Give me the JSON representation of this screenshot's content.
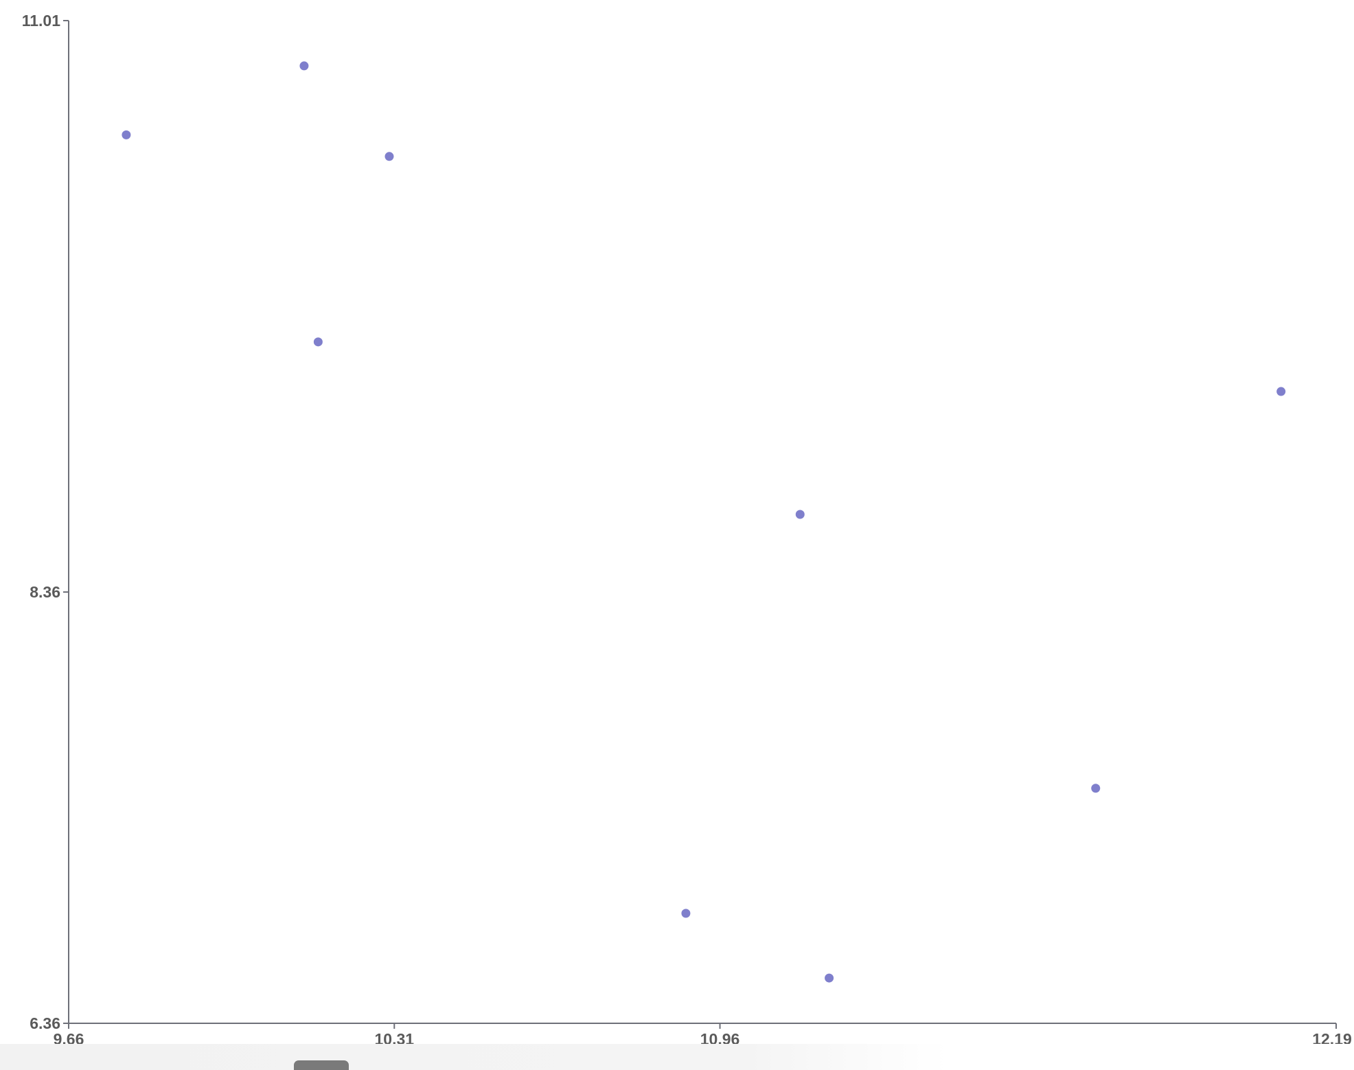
{
  "chart_data": {
    "type": "scatter",
    "title": "",
    "xlabel": "",
    "ylabel": "",
    "xlim": [
      9.66,
      12.19
    ],
    "ylim": [
      6.36,
      11.01
    ],
    "x_ticks": [
      "9.66",
      "10.31",
      "10.96",
      "12.19"
    ],
    "x_tick_values": [
      9.66,
      10.31,
      10.96,
      12.19
    ],
    "y_ticks": [
      "6.36",
      "8.36",
      "11.01"
    ],
    "y_tick_values": [
      6.36,
      8.36,
      11.01
    ],
    "grid": false,
    "legend": "none",
    "point_color": "#7f7fcc",
    "axis_color": "#6e7079",
    "series": [
      {
        "points": [
          {
            "x": 9.775,
            "y": 10.48
          },
          {
            "x": 10.13,
            "y": 10.8
          },
          {
            "x": 10.3,
            "y": 10.38
          },
          {
            "x": 10.158,
            "y": 9.52
          },
          {
            "x": 10.892,
            "y": 6.87
          },
          {
            "x": 11.12,
            "y": 8.72
          },
          {
            "x": 11.178,
            "y": 6.57
          },
          {
            "x": 11.71,
            "y": 7.45
          },
          {
            "x": 12.08,
            "y": 9.29
          }
        ]
      }
    ]
  }
}
